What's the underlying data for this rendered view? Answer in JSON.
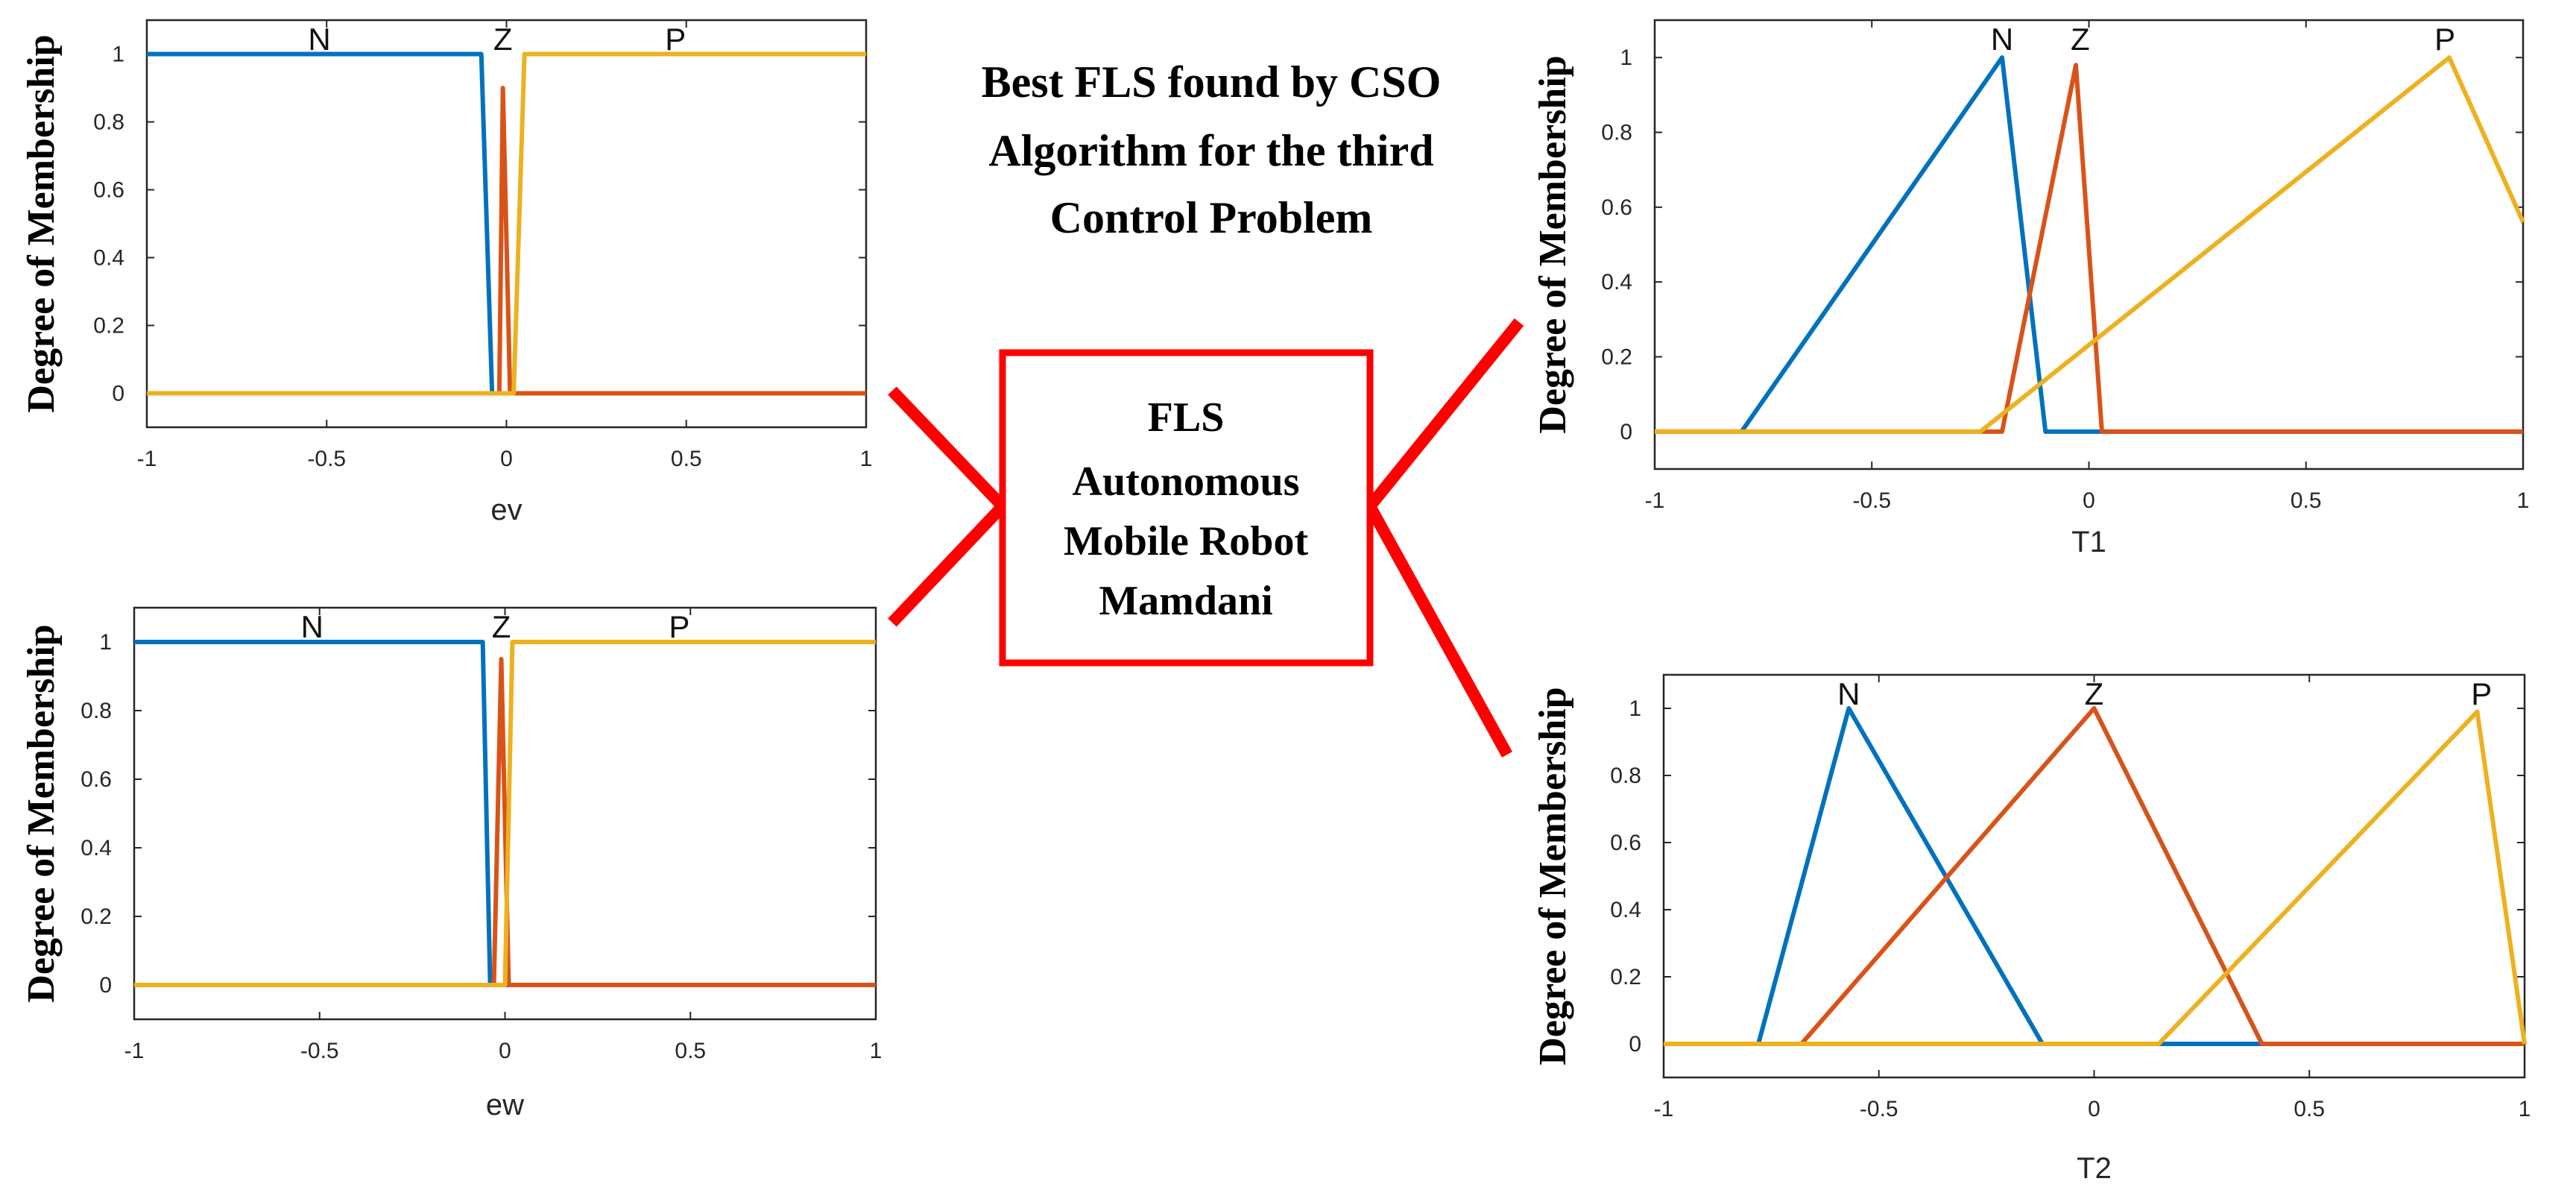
{
  "title_lines": [
    "Best FLS found by CSO",
    "Algorithm for the third",
    "Control Problem"
  ],
  "center_box": {
    "lines": [
      "FLS",
      "Autonomous",
      "Mobile Robot",
      "Mamdani"
    ],
    "border_color": "#ff0000"
  },
  "colors": {
    "N": "#0072bd",
    "Z": "#d95319",
    "P": "#edb120",
    "connector": "#ff0000"
  },
  "chart_data": [
    {
      "id": "ev",
      "type": "line",
      "xlabel": "ev",
      "ylabel": "Degree of Membership",
      "xlim": [
        -1,
        1
      ],
      "ylim": [
        -0.1,
        1.1
      ],
      "xticks": [
        "-1",
        "-0.5",
        "0",
        "0.5",
        "1"
      ],
      "yticks": [
        "0",
        "0.2",
        "0.4",
        "0.6",
        "0.8",
        "1"
      ],
      "series": [
        {
          "name": "N",
          "label_x": -0.52,
          "points": [
            [
              -1,
              1
            ],
            [
              -0.07,
              1
            ],
            [
              -0.04,
              0
            ],
            [
              1,
              0
            ]
          ]
        },
        {
          "name": "Z",
          "label_x": -0.01,
          "points": [
            [
              -1,
              0
            ],
            [
              -0.02,
              0
            ],
            [
              -0.01,
              0.9
            ],
            [
              0.01,
              0
            ],
            [
              1,
              0
            ]
          ]
        },
        {
          "name": "P",
          "label_x": 0.47,
          "points": [
            [
              -1,
              0
            ],
            [
              0.02,
              0
            ],
            [
              0.05,
              1
            ],
            [
              1,
              1
            ]
          ]
        }
      ]
    },
    {
      "id": "ew",
      "type": "line",
      "xlabel": "ew",
      "ylabel": "Degree of Membership",
      "xlim": [
        -1,
        1
      ],
      "ylim": [
        -0.1,
        1.1
      ],
      "xticks": [
        "-1",
        "-0.5",
        "0",
        "0.5",
        "1"
      ],
      "yticks": [
        "0",
        "0.2",
        "0.4",
        "0.6",
        "0.8",
        "1"
      ],
      "series": [
        {
          "name": "N",
          "label_x": -0.52,
          "points": [
            [
              -1,
              1
            ],
            [
              -0.06,
              1
            ],
            [
              -0.04,
              0
            ],
            [
              1,
              0
            ]
          ]
        },
        {
          "name": "Z",
          "label_x": -0.01,
          "points": [
            [
              -1,
              0
            ],
            [
              -0.03,
              0
            ],
            [
              -0.01,
              0.95
            ],
            [
              0.01,
              0
            ],
            [
              1,
              0
            ]
          ]
        },
        {
          "name": "P",
          "label_x": 0.47,
          "points": [
            [
              -1,
              0
            ],
            [
              0,
              0
            ],
            [
              0.02,
              1
            ],
            [
              1,
              1
            ]
          ]
        }
      ]
    },
    {
      "id": "T1",
      "type": "line",
      "xlabel": "T1",
      "ylabel": "Degree of Membership",
      "xlim": [
        -1,
        1
      ],
      "ylim": [
        -0.1,
        1.1
      ],
      "xticks": [
        "-1",
        "-0.5",
        "0",
        "0.5",
        "1"
      ],
      "yticks": [
        "0",
        "0.2",
        "0.4",
        "0.6",
        "0.8",
        "1"
      ],
      "series": [
        {
          "name": "N",
          "label_x": -0.2,
          "points": [
            [
              -1,
              0
            ],
            [
              -0.8,
              0
            ],
            [
              -0.2,
              1
            ],
            [
              -0.1,
              0
            ],
            [
              1,
              0
            ]
          ]
        },
        {
          "name": "Z",
          "label_x": -0.02,
          "points": [
            [
              -1,
              0
            ],
            [
              -0.2,
              0
            ],
            [
              -0.03,
              0.98
            ],
            [
              0.03,
              0
            ],
            [
              1,
              0
            ]
          ]
        },
        {
          "name": "P",
          "label_x": 0.82,
          "points": [
            [
              -1,
              0
            ],
            [
              -0.25,
              0
            ],
            [
              0.83,
              1
            ],
            [
              1,
              0.56
            ]
          ]
        }
      ]
    },
    {
      "id": "T2",
      "type": "line",
      "xlabel": "T2",
      "ylabel": "Degree of Membership",
      "xlim": [
        -1,
        1
      ],
      "ylim": [
        -0.1,
        1.1
      ],
      "xticks": [
        "-1",
        "-0.5",
        "0",
        "0.5",
        "1"
      ],
      "yticks": [
        "0",
        "0.2",
        "0.4",
        "0.6",
        "0.8",
        "1"
      ],
      "series": [
        {
          "name": "N",
          "label_x": -0.57,
          "points": [
            [
              -1,
              0
            ],
            [
              -0.78,
              0
            ],
            [
              -0.57,
              1
            ],
            [
              -0.12,
              0
            ],
            [
              1,
              0
            ]
          ]
        },
        {
          "name": "Z",
          "label_x": 0.0,
          "points": [
            [
              -1,
              0
            ],
            [
              -0.68,
              0
            ],
            [
              0,
              1
            ],
            [
              0.39,
              0
            ],
            [
              1,
              0
            ]
          ]
        },
        {
          "name": "P",
          "label_x": 0.9,
          "points": [
            [
              -1,
              0
            ],
            [
              0.15,
              0
            ],
            [
              0.89,
              0.99
            ],
            [
              1,
              0
            ]
          ]
        }
      ]
    }
  ]
}
